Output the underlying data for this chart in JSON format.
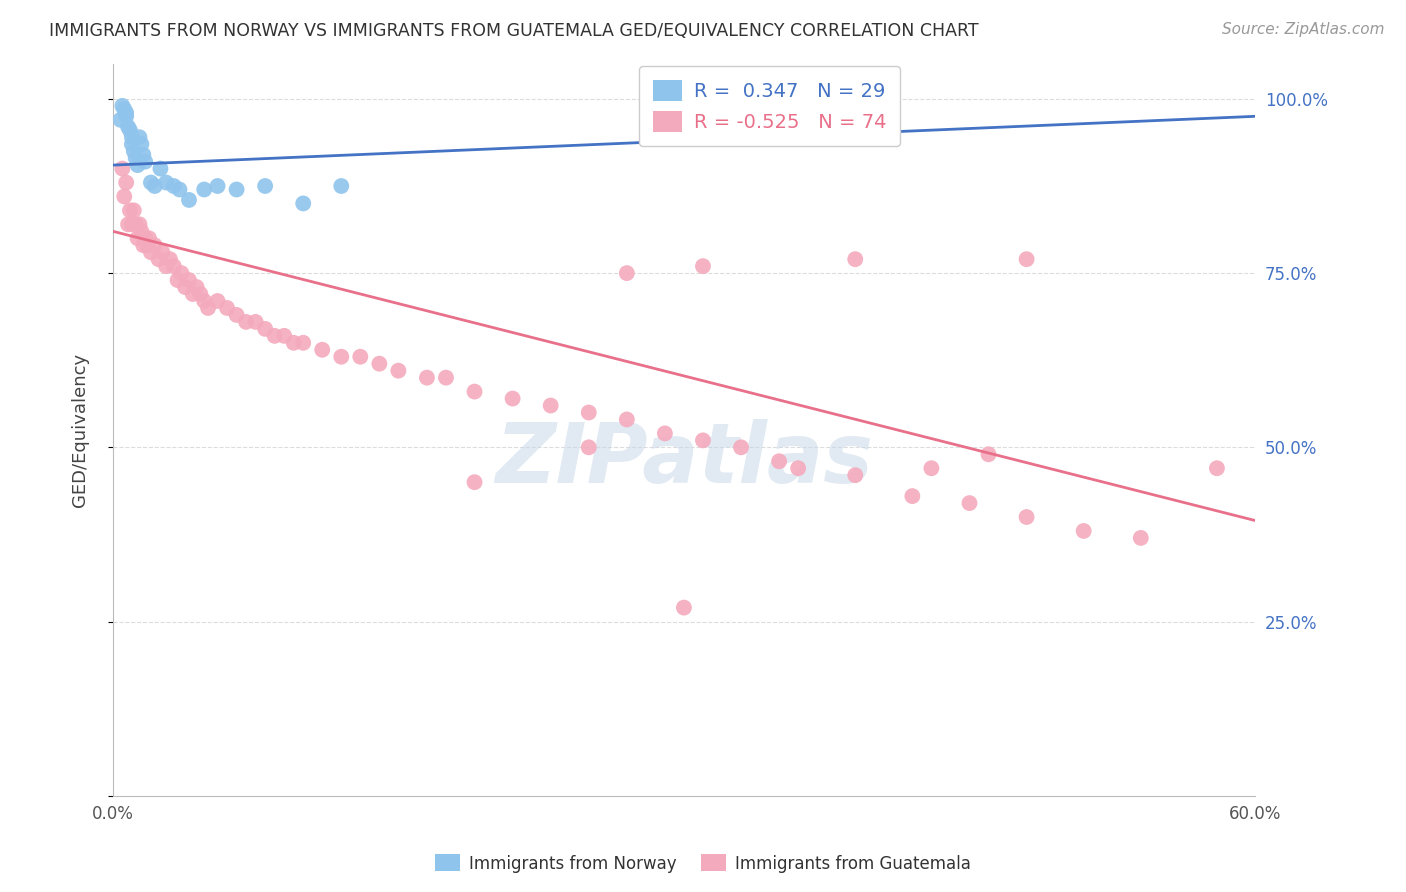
{
  "title": "IMMIGRANTS FROM NORWAY VS IMMIGRANTS FROM GUATEMALA GED/EQUIVALENCY CORRELATION CHART",
  "source": "Source: ZipAtlas.com",
  "ylabel": "GED/Equivalency",
  "xlim": [
    0.0,
    0.6
  ],
  "ylim": [
    0.0,
    1.05
  ],
  "norway_R": 0.347,
  "norway_N": 29,
  "guatemala_R": -0.525,
  "guatemala_N": 74,
  "norway_color": "#8FC4ED",
  "guatemala_color": "#F4AABD",
  "norway_line_color": "#4472C4",
  "guatemala_line_color": "#E8708A",
  "background_color": "#FFFFFF",
  "grid_color": "#DCDCDC",
  "watermark": "ZIPatlas",
  "norway_line_x0": 0.0,
  "norway_line_x1": 0.6,
  "norway_line_y0": 0.905,
  "norway_line_y1": 0.975,
  "guatemala_line_x0": 0.0,
  "guatemala_line_x1": 0.6,
  "guatemala_line_y0": 0.81,
  "guatemala_line_y1": 0.395,
  "norway_x": [
    0.004,
    0.005,
    0.006,
    0.007,
    0.007,
    0.008,
    0.009,
    0.01,
    0.01,
    0.011,
    0.012,
    0.013,
    0.014,
    0.015,
    0.016,
    0.017,
    0.02,
    0.022,
    0.025,
    0.028,
    0.032,
    0.035,
    0.04,
    0.048,
    0.055,
    0.065,
    0.08,
    0.1,
    0.12
  ],
  "norway_y": [
    0.97,
    0.99,
    0.985,
    0.98,
    0.975,
    0.96,
    0.955,
    0.945,
    0.935,
    0.925,
    0.915,
    0.905,
    0.945,
    0.935,
    0.92,
    0.91,
    0.88,
    0.875,
    0.9,
    0.88,
    0.875,
    0.87,
    0.855,
    0.87,
    0.875,
    0.87,
    0.875,
    0.85,
    0.875
  ],
  "guatemala_x": [
    0.005,
    0.006,
    0.007,
    0.008,
    0.009,
    0.01,
    0.011,
    0.012,
    0.013,
    0.014,
    0.015,
    0.016,
    0.017,
    0.018,
    0.019,
    0.02,
    0.022,
    0.024,
    0.026,
    0.028,
    0.03,
    0.032,
    0.034,
    0.036,
    0.038,
    0.04,
    0.042,
    0.044,
    0.046,
    0.048,
    0.05,
    0.055,
    0.06,
    0.065,
    0.07,
    0.075,
    0.08,
    0.085,
    0.09,
    0.095,
    0.1,
    0.11,
    0.12,
    0.13,
    0.14,
    0.15,
    0.165,
    0.175,
    0.19,
    0.21,
    0.23,
    0.25,
    0.27,
    0.29,
    0.31,
    0.33,
    0.36,
    0.39,
    0.42,
    0.45,
    0.48,
    0.51,
    0.54,
    0.31,
    0.39,
    0.27,
    0.48,
    0.25,
    0.35,
    0.19,
    0.58,
    0.43,
    0.3,
    0.46
  ],
  "guatemala_y": [
    0.9,
    0.86,
    0.88,
    0.82,
    0.84,
    0.82,
    0.84,
    0.82,
    0.8,
    0.82,
    0.81,
    0.79,
    0.8,
    0.79,
    0.8,
    0.78,
    0.79,
    0.77,
    0.78,
    0.76,
    0.77,
    0.76,
    0.74,
    0.75,
    0.73,
    0.74,
    0.72,
    0.73,
    0.72,
    0.71,
    0.7,
    0.71,
    0.7,
    0.69,
    0.68,
    0.68,
    0.67,
    0.66,
    0.66,
    0.65,
    0.65,
    0.64,
    0.63,
    0.63,
    0.62,
    0.61,
    0.6,
    0.6,
    0.58,
    0.57,
    0.56,
    0.55,
    0.54,
    0.52,
    0.51,
    0.5,
    0.47,
    0.46,
    0.43,
    0.42,
    0.4,
    0.38,
    0.37,
    0.76,
    0.77,
    0.75,
    0.77,
    0.5,
    0.48,
    0.45,
    0.47,
    0.47,
    0.27,
    0.49
  ]
}
